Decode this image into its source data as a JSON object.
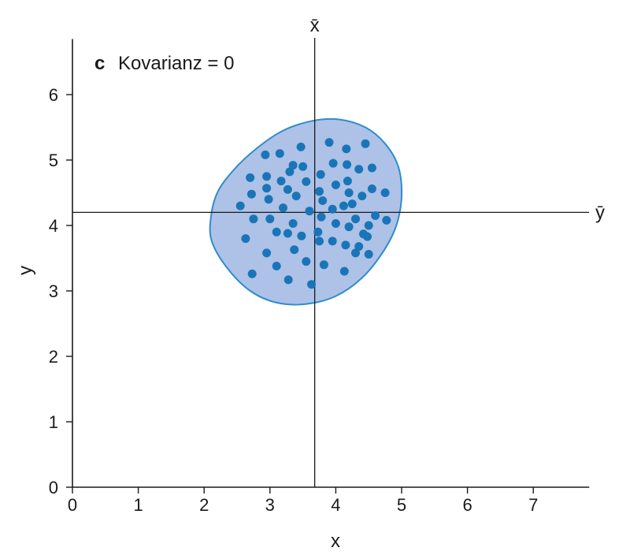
{
  "chart_data": {
    "type": "scatter",
    "panel_letter": "c",
    "title": "Kovarianz = 0",
    "xlabel": "x",
    "ylabel": "y",
    "xlim": [
      0,
      7.85
    ],
    "ylim": [
      0,
      6.85
    ],
    "xticks": [
      "0",
      "1",
      "2",
      "3",
      "4",
      "5",
      "6",
      "7"
    ],
    "yticks": [
      "0",
      "1",
      "2",
      "3",
      "4",
      "5",
      "6"
    ],
    "grid": false,
    "mean_x": 3.68,
    "mean_y": 4.2,
    "mean_x_label": "x̄",
    "mean_y_label": "ȳ",
    "point_color": "#1a75b8",
    "ellipse_fill": "#adc2e6",
    "ellipse_stroke": "#2f8ccc",
    "ellipse": [
      [
        2.1,
        4.1
      ],
      [
        2.2,
        4.5
      ],
      [
        2.45,
        4.85
      ],
      [
        2.8,
        5.18
      ],
      [
        3.2,
        5.45
      ],
      [
        3.65,
        5.6
      ],
      [
        4.05,
        5.62
      ],
      [
        4.45,
        5.5
      ],
      [
        4.75,
        5.25
      ],
      [
        4.95,
        4.9
      ],
      [
        5.0,
        4.45
      ],
      [
        4.92,
        4.0
      ],
      [
        4.72,
        3.6
      ],
      [
        4.4,
        3.2
      ],
      [
        4.0,
        2.92
      ],
      [
        3.55,
        2.8
      ],
      [
        3.1,
        2.82
      ],
      [
        2.7,
        3.0
      ],
      [
        2.35,
        3.35
      ],
      [
        2.12,
        3.75
      ]
    ],
    "points": [
      {
        "x": 2.93,
        "y": 5.08
      },
      {
        "x": 3.15,
        "y": 5.1
      },
      {
        "x": 3.47,
        "y": 5.2
      },
      {
        "x": 3.9,
        "y": 5.27
      },
      {
        "x": 4.16,
        "y": 5.17
      },
      {
        "x": 4.45,
        "y": 5.25
      },
      {
        "x": 3.35,
        "y": 4.92
      },
      {
        "x": 3.5,
        "y": 4.9
      },
      {
        "x": 3.3,
        "y": 4.82
      },
      {
        "x": 3.96,
        "y": 4.95
      },
      {
        "x": 4.17,
        "y": 4.93
      },
      {
        "x": 4.35,
        "y": 4.86
      },
      {
        "x": 4.55,
        "y": 4.88
      },
      {
        "x": 2.7,
        "y": 4.73
      },
      {
        "x": 2.95,
        "y": 4.75
      },
      {
        "x": 3.17,
        "y": 4.68
      },
      {
        "x": 3.55,
        "y": 4.67
      },
      {
        "x": 3.77,
        "y": 4.78
      },
      {
        "x": 4.0,
        "y": 4.62
      },
      {
        "x": 4.18,
        "y": 4.68
      },
      {
        "x": 2.95,
        "y": 4.57
      },
      {
        "x": 3.27,
        "y": 4.55
      },
      {
        "x": 3.4,
        "y": 4.45
      },
      {
        "x": 3.75,
        "y": 4.52
      },
      {
        "x": 4.2,
        "y": 4.5
      },
      {
        "x": 4.4,
        "y": 4.45
      },
      {
        "x": 4.55,
        "y": 4.56
      },
      {
        "x": 4.75,
        "y": 4.5
      },
      {
        "x": 2.72,
        "y": 4.48
      },
      {
        "x": 2.98,
        "y": 4.4
      },
      {
        "x": 3.8,
        "y": 4.38
      },
      {
        "x": 4.12,
        "y": 4.3
      },
      {
        "x": 4.25,
        "y": 4.33
      },
      {
        "x": 2.55,
        "y": 4.3
      },
      {
        "x": 3.2,
        "y": 4.27
      },
      {
        "x": 3.6,
        "y": 4.22
      },
      {
        "x": 3.95,
        "y": 4.25
      },
      {
        "x": 2.75,
        "y": 4.1
      },
      {
        "x": 3.0,
        "y": 4.1
      },
      {
        "x": 3.78,
        "y": 4.13
      },
      {
        "x": 4.3,
        "y": 4.1
      },
      {
        "x": 4.6,
        "y": 4.15
      },
      {
        "x": 4.77,
        "y": 4.08
      },
      {
        "x": 3.35,
        "y": 4.03
      },
      {
        "x": 4.0,
        "y": 4.03
      },
      {
        "x": 4.2,
        "y": 3.98
      },
      {
        "x": 4.5,
        "y": 4.0
      },
      {
        "x": 3.1,
        "y": 3.9
      },
      {
        "x": 3.27,
        "y": 3.88
      },
      {
        "x": 3.73,
        "y": 3.9
      },
      {
        "x": 4.42,
        "y": 3.87
      },
      {
        "x": 2.63,
        "y": 3.8
      },
      {
        "x": 3.48,
        "y": 3.84
      },
      {
        "x": 3.75,
        "y": 3.76
      },
      {
        "x": 3.95,
        "y": 3.76
      },
      {
        "x": 4.48,
        "y": 3.83
      },
      {
        "x": 4.15,
        "y": 3.7
      },
      {
        "x": 4.35,
        "y": 3.68
      },
      {
        "x": 3.37,
        "y": 3.63
      },
      {
        "x": 2.95,
        "y": 3.58
      },
      {
        "x": 4.3,
        "y": 3.58
      },
      {
        "x": 4.5,
        "y": 3.56
      },
      {
        "x": 3.55,
        "y": 3.45
      },
      {
        "x": 3.1,
        "y": 3.38
      },
      {
        "x": 3.82,
        "y": 3.4
      },
      {
        "x": 2.73,
        "y": 3.26
      },
      {
        "x": 4.13,
        "y": 3.3
      },
      {
        "x": 3.28,
        "y": 3.17
      },
      {
        "x": 3.63,
        "y": 3.1
      }
    ]
  }
}
